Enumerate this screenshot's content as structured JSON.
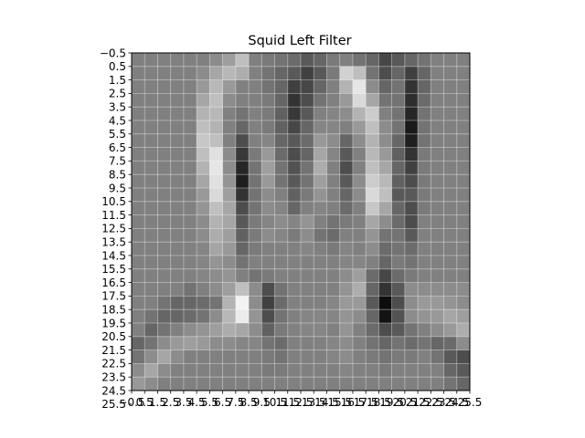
{
  "chart_data": {
    "type": "heatmap",
    "title": "Squid Left Filter",
    "xlabel": "",
    "ylabel": "",
    "colormap": "gray",
    "grid": true,
    "x_range": [
      -0.5,
      25.5
    ],
    "y_range": [
      25.5,
      -0.5
    ],
    "x_tick_labels": [
      "−0.5",
      "0.5",
      "1.5",
      "2.5",
      "3.5",
      "4.5",
      "5.5",
      "6.5",
      "7.5",
      "8.5",
      "9.5",
      "10.5",
      "11.5",
      "12.5",
      "13.5",
      "14.5",
      "15.5",
      "16.5",
      "17.5",
      "18.5",
      "19.5",
      "20.5",
      "21.5",
      "22.5",
      "23.5",
      "24.5",
      "25.5"
    ],
    "y_tick_labels": [
      "−0.5",
      "0.5",
      "1.5",
      "2.5",
      "3.5",
      "4.5",
      "5.5",
      "6.5",
      "7.5",
      "8.5",
      "9.5",
      "10.5",
      "11.5",
      "12.5",
      "13.5",
      "14.5",
      "15.5",
      "16.5",
      "17.5",
      "18.5",
      "19.5",
      "20.5",
      "21.5",
      "22.5",
      "23.5",
      "24.5",
      "25.5"
    ],
    "values": [
      [
        0.5,
        0.5,
        0.5,
        0.5,
        0.5,
        0.5,
        0.55,
        0.62,
        0.75,
        0.5,
        0.48,
        0.45,
        0.42,
        0.35,
        0.4,
        0.48,
        0.5,
        0.45,
        0.4,
        0.28,
        0.35,
        0.4,
        0.45,
        0.5,
        0.5,
        0.5
      ],
      [
        0.5,
        0.5,
        0.5,
        0.5,
        0.5,
        0.55,
        0.65,
        0.72,
        0.68,
        0.5,
        0.45,
        0.4,
        0.35,
        0.25,
        0.35,
        0.48,
        0.82,
        0.75,
        0.45,
        0.3,
        0.4,
        0.25,
        0.4,
        0.5,
        0.5,
        0.5
      ],
      [
        0.5,
        0.5,
        0.5,
        0.5,
        0.5,
        0.6,
        0.72,
        0.6,
        0.5,
        0.5,
        0.45,
        0.4,
        0.25,
        0.28,
        0.4,
        0.5,
        0.7,
        0.9,
        0.55,
        0.4,
        0.45,
        0.2,
        0.4,
        0.5,
        0.5,
        0.5
      ],
      [
        0.5,
        0.5,
        0.5,
        0.5,
        0.5,
        0.65,
        0.75,
        0.55,
        0.5,
        0.5,
        0.48,
        0.4,
        0.2,
        0.3,
        0.45,
        0.5,
        0.6,
        0.85,
        0.65,
        0.45,
        0.45,
        0.18,
        0.42,
        0.5,
        0.5,
        0.5
      ],
      [
        0.5,
        0.5,
        0.5,
        0.5,
        0.5,
        0.7,
        0.72,
        0.5,
        0.45,
        0.5,
        0.48,
        0.38,
        0.22,
        0.35,
        0.5,
        0.52,
        0.55,
        0.7,
        0.8,
        0.5,
        0.45,
        0.15,
        0.45,
        0.5,
        0.5,
        0.5
      ],
      [
        0.5,
        0.5,
        0.5,
        0.5,
        0.5,
        0.75,
        0.7,
        0.5,
        0.4,
        0.5,
        0.48,
        0.38,
        0.28,
        0.4,
        0.52,
        0.52,
        0.5,
        0.6,
        0.75,
        0.55,
        0.45,
        0.1,
        0.45,
        0.5,
        0.5,
        0.5
      ],
      [
        0.5,
        0.5,
        0.5,
        0.5,
        0.5,
        0.78,
        0.75,
        0.5,
        0.3,
        0.5,
        0.52,
        0.4,
        0.35,
        0.42,
        0.6,
        0.55,
        0.4,
        0.55,
        0.7,
        0.55,
        0.4,
        0.12,
        0.45,
        0.5,
        0.5,
        0.5
      ],
      [
        0.5,
        0.5,
        0.5,
        0.5,
        0.5,
        0.75,
        0.88,
        0.55,
        0.22,
        0.48,
        0.6,
        0.42,
        0.3,
        0.4,
        0.65,
        0.52,
        0.35,
        0.5,
        0.72,
        0.6,
        0.38,
        0.2,
        0.48,
        0.5,
        0.5,
        0.5
      ],
      [
        0.5,
        0.5,
        0.5,
        0.5,
        0.5,
        0.7,
        0.9,
        0.55,
        0.15,
        0.45,
        0.62,
        0.45,
        0.32,
        0.45,
        0.68,
        0.5,
        0.3,
        0.5,
        0.75,
        0.65,
        0.4,
        0.25,
        0.48,
        0.5,
        0.5,
        0.5
      ],
      [
        0.5,
        0.5,
        0.5,
        0.5,
        0.5,
        0.65,
        0.88,
        0.58,
        0.12,
        0.45,
        0.6,
        0.45,
        0.35,
        0.45,
        0.62,
        0.5,
        0.35,
        0.55,
        0.8,
        0.72,
        0.38,
        0.3,
        0.48,
        0.5,
        0.5,
        0.5
      ],
      [
        0.5,
        0.5,
        0.5,
        0.5,
        0.5,
        0.6,
        0.85,
        0.62,
        0.2,
        0.45,
        0.55,
        0.5,
        0.38,
        0.48,
        0.58,
        0.5,
        0.4,
        0.55,
        0.85,
        0.75,
        0.35,
        0.35,
        0.48,
        0.5,
        0.5,
        0.5
      ],
      [
        0.5,
        0.5,
        0.5,
        0.5,
        0.5,
        0.58,
        0.75,
        0.65,
        0.3,
        0.45,
        0.55,
        0.52,
        0.4,
        0.5,
        0.52,
        0.5,
        0.42,
        0.5,
        0.78,
        0.65,
        0.4,
        0.3,
        0.48,
        0.5,
        0.5,
        0.5
      ],
      [
        0.5,
        0.5,
        0.5,
        0.5,
        0.5,
        0.55,
        0.7,
        0.65,
        0.35,
        0.48,
        0.52,
        0.55,
        0.52,
        0.58,
        0.5,
        0.45,
        0.48,
        0.5,
        0.65,
        0.55,
        0.42,
        0.3,
        0.5,
        0.5,
        0.5,
        0.5
      ],
      [
        0.5,
        0.5,
        0.5,
        0.5,
        0.5,
        0.55,
        0.68,
        0.62,
        0.38,
        0.48,
        0.55,
        0.52,
        0.48,
        0.55,
        0.45,
        0.42,
        0.5,
        0.5,
        0.58,
        0.45,
        0.45,
        0.35,
        0.5,
        0.5,
        0.5,
        0.5
      ],
      [
        0.5,
        0.5,
        0.5,
        0.5,
        0.5,
        0.52,
        0.65,
        0.6,
        0.4,
        0.48,
        0.5,
        0.5,
        0.5,
        0.52,
        0.5,
        0.48,
        0.52,
        0.5,
        0.55,
        0.42,
        0.45,
        0.42,
        0.5,
        0.5,
        0.5,
        0.5
      ],
      [
        0.5,
        0.5,
        0.5,
        0.5,
        0.5,
        0.52,
        0.58,
        0.55,
        0.45,
        0.5,
        0.5,
        0.5,
        0.5,
        0.5,
        0.5,
        0.5,
        0.52,
        0.52,
        0.5,
        0.4,
        0.48,
        0.45,
        0.5,
        0.5,
        0.5,
        0.5
      ],
      [
        0.5,
        0.5,
        0.5,
        0.5,
        0.5,
        0.52,
        0.55,
        0.58,
        0.5,
        0.45,
        0.48,
        0.5,
        0.5,
        0.5,
        0.5,
        0.5,
        0.55,
        0.62,
        0.42,
        0.28,
        0.42,
        0.48,
        0.5,
        0.5,
        0.5,
        0.5
      ],
      [
        0.5,
        0.5,
        0.5,
        0.5,
        0.45,
        0.5,
        0.55,
        0.62,
        0.75,
        0.55,
        0.3,
        0.45,
        0.5,
        0.5,
        0.5,
        0.5,
        0.58,
        0.68,
        0.4,
        0.2,
        0.35,
        0.55,
        0.55,
        0.55,
        0.55,
        0.55
      ],
      [
        0.5,
        0.5,
        0.45,
        0.4,
        0.4,
        0.42,
        0.45,
        0.7,
        0.95,
        0.55,
        0.25,
        0.42,
        0.5,
        0.5,
        0.5,
        0.52,
        0.6,
        0.6,
        0.35,
        0.05,
        0.3,
        0.55,
        0.6,
        0.6,
        0.58,
        0.55
      ],
      [
        0.5,
        0.45,
        0.4,
        0.4,
        0.42,
        0.45,
        0.55,
        0.72,
        0.92,
        0.58,
        0.3,
        0.45,
        0.5,
        0.52,
        0.52,
        0.52,
        0.58,
        0.55,
        0.4,
        0.08,
        0.32,
        0.55,
        0.58,
        0.6,
        0.65,
        0.62
      ],
      [
        0.5,
        0.4,
        0.45,
        0.5,
        0.55,
        0.58,
        0.62,
        0.68,
        0.65,
        0.55,
        0.38,
        0.48,
        0.5,
        0.52,
        0.52,
        0.5,
        0.58,
        0.5,
        0.42,
        0.3,
        0.35,
        0.45,
        0.5,
        0.55,
        0.6,
        0.68
      ],
      [
        0.4,
        0.45,
        0.55,
        0.6,
        0.62,
        0.6,
        0.55,
        0.55,
        0.52,
        0.52,
        0.45,
        0.42,
        0.5,
        0.5,
        0.5,
        0.52,
        0.55,
        0.5,
        0.45,
        0.4,
        0.45,
        0.42,
        0.45,
        0.4,
        0.42,
        0.55
      ],
      [
        0.45,
        0.55,
        0.65,
        0.55,
        0.5,
        0.5,
        0.5,
        0.5,
        0.5,
        0.5,
        0.48,
        0.45,
        0.5,
        0.5,
        0.5,
        0.52,
        0.55,
        0.5,
        0.48,
        0.45,
        0.48,
        0.48,
        0.5,
        0.45,
        0.35,
        0.3
      ],
      [
        0.55,
        0.65,
        0.55,
        0.5,
        0.5,
        0.5,
        0.5,
        0.5,
        0.5,
        0.5,
        0.48,
        0.48,
        0.5,
        0.5,
        0.5,
        0.5,
        0.52,
        0.5,
        0.5,
        0.48,
        0.5,
        0.5,
        0.5,
        0.5,
        0.4,
        0.35
      ],
      [
        0.6,
        0.55,
        0.5,
        0.5,
        0.5,
        0.5,
        0.5,
        0.5,
        0.5,
        0.5,
        0.5,
        0.5,
        0.5,
        0.5,
        0.5,
        0.5,
        0.5,
        0.5,
        0.5,
        0.5,
        0.5,
        0.5,
        0.5,
        0.5,
        0.45,
        0.4
      ]
    ]
  }
}
